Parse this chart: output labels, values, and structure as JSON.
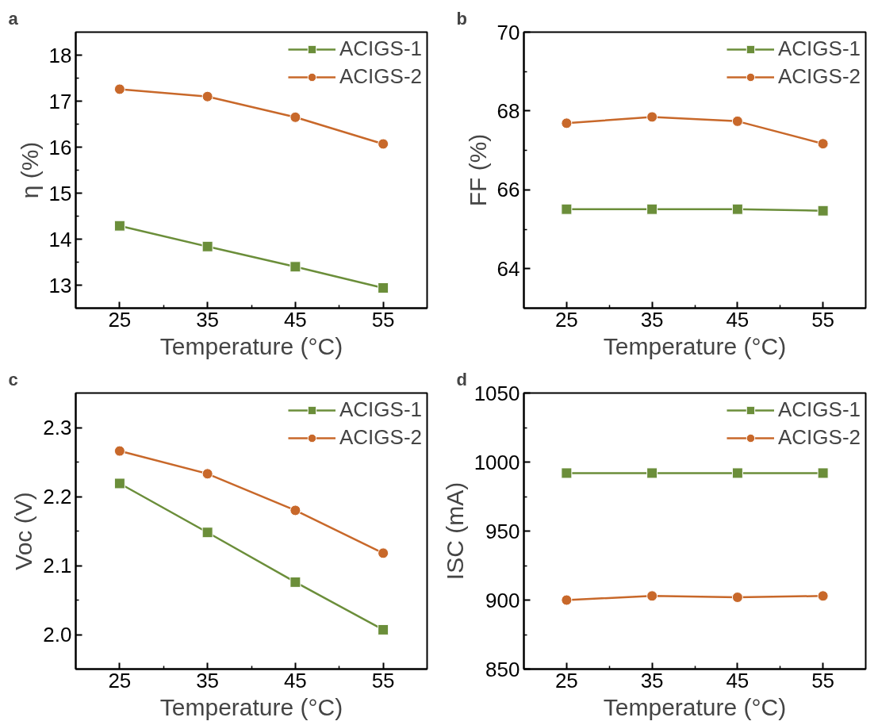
{
  "chart_data": [
    {
      "type": "line",
      "annotations": [
        "a"
      ],
      "xlabel": "Temperature (°C)",
      "ylabel": "η (%)",
      "x": [
        25,
        35,
        45,
        55
      ],
      "xlim": [
        20,
        60
      ],
      "xticks": [
        25,
        35,
        45,
        55
      ],
      "ylim": [
        12.5,
        18.5
      ],
      "yticks": [
        13,
        14,
        15,
        16,
        17,
        18
      ],
      "legend": "top right",
      "series": [
        {
          "name": "ACIGS-1",
          "color": "#6b8e3a",
          "marker": "square",
          "values": [
            14.29,
            13.84,
            13.4,
            12.94
          ]
        },
        {
          "name": "ACIGS-2",
          "color": "#c8682a",
          "marker": "circle",
          "values": [
            17.26,
            17.1,
            16.65,
            16.07
          ]
        }
      ]
    },
    {
      "type": "line",
      "annotations": [
        "b"
      ],
      "xlabel": "Temperature (°C)",
      "ylabel": "FF (%)",
      "x": [
        25,
        35,
        45,
        55
      ],
      "xlim": [
        20,
        60
      ],
      "xticks": [
        25,
        35,
        45,
        55
      ],
      "ylim": [
        63,
        70
      ],
      "yticks": [
        64,
        66,
        68,
        70
      ],
      "legend": "top right",
      "series": [
        {
          "name": "ACIGS-1",
          "color": "#6b8e3a",
          "marker": "square",
          "values": [
            65.51,
            65.51,
            65.51,
            65.47
          ]
        },
        {
          "name": "ACIGS-2",
          "color": "#c8682a",
          "marker": "circle",
          "values": [
            67.69,
            67.85,
            67.74,
            67.17
          ]
        }
      ]
    },
    {
      "type": "line",
      "annotations": [
        "c"
      ],
      "xlabel": "Temperature (°C)",
      "ylabel": "Voc (V)",
      "x": [
        25,
        35,
        45,
        55
      ],
      "xlim": [
        20,
        60
      ],
      "xticks": [
        25,
        35,
        45,
        55
      ],
      "ylim": [
        1.95,
        2.35
      ],
      "yticks": [
        {
          "value": 2.0,
          "label": "2.0"
        },
        2.1,
        2.2,
        2.3
      ],
      "legend": "top right",
      "series": [
        {
          "name": "ACIGS-1",
          "color": "#6b8e3a",
          "marker": "square",
          "values": [
            2.219,
            2.148,
            2.076,
            2.007
          ]
        },
        {
          "name": "ACIGS-2",
          "color": "#c8682a",
          "marker": "circle",
          "values": [
            2.266,
            2.233,
            2.18,
            2.118
          ]
        }
      ]
    },
    {
      "type": "line",
      "annotations": [
        "d"
      ],
      "xlabel": "Temperature (°C)",
      "ylabel": "ISC (mA)",
      "x": [
        25,
        35,
        45,
        55
      ],
      "xlim": [
        20,
        60
      ],
      "xticks": [
        25,
        35,
        45,
        55
      ],
      "ylim": [
        850,
        1050
      ],
      "yticks": [
        850,
        900,
        950,
        1000,
        1050
      ],
      "legend": "top right",
      "series": [
        {
          "name": "ACIGS-1",
          "color": "#6b8e3a",
          "marker": "square",
          "values": [
            992,
            992,
            992,
            992
          ]
        },
        {
          "name": "ACIGS-2",
          "color": "#c8682a",
          "marker": "circle",
          "values": [
            900,
            903,
            902,
            903
          ]
        }
      ]
    }
  ]
}
